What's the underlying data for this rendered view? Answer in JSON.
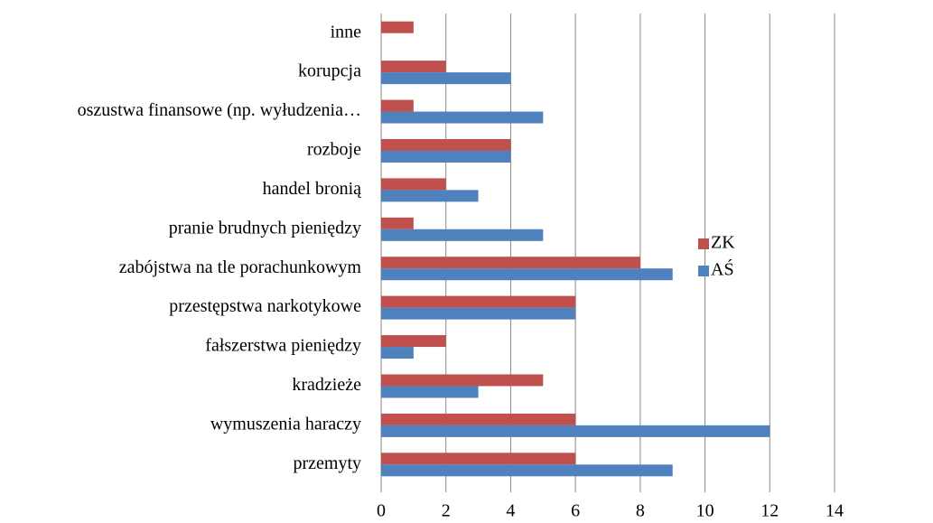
{
  "chart_data": {
    "type": "bar",
    "orientation": "horizontal",
    "categories": [
      "inne",
      "korupcja",
      "oszustwa finansowe (np. wyłudzenia…",
      "rozboje",
      "handel bronią",
      "pranie brudnych pieniędzy",
      "zabójstwa na tle porachunkowym",
      "przestępstwa narkotykowe",
      "fałszerstwa pieniędzy",
      "kradzieże",
      "wymuszenia haraczy",
      "przemyty"
    ],
    "series": [
      {
        "name": "ZK",
        "color": "#c0504d",
        "values": [
          1,
          2,
          1,
          4,
          2,
          1,
          8,
          6,
          2,
          5,
          6,
          6
        ]
      },
      {
        "name": "AŚ",
        "color": "#4f81bd",
        "values": [
          0,
          4,
          5,
          4,
          3,
          5,
          9,
          6,
          1,
          3,
          12,
          9
        ]
      }
    ],
    "xlim": [
      0,
      14
    ],
    "xticks": [
      0,
      2,
      4,
      6,
      8,
      10,
      12,
      14
    ],
    "grid": true,
    "legend": "right"
  }
}
